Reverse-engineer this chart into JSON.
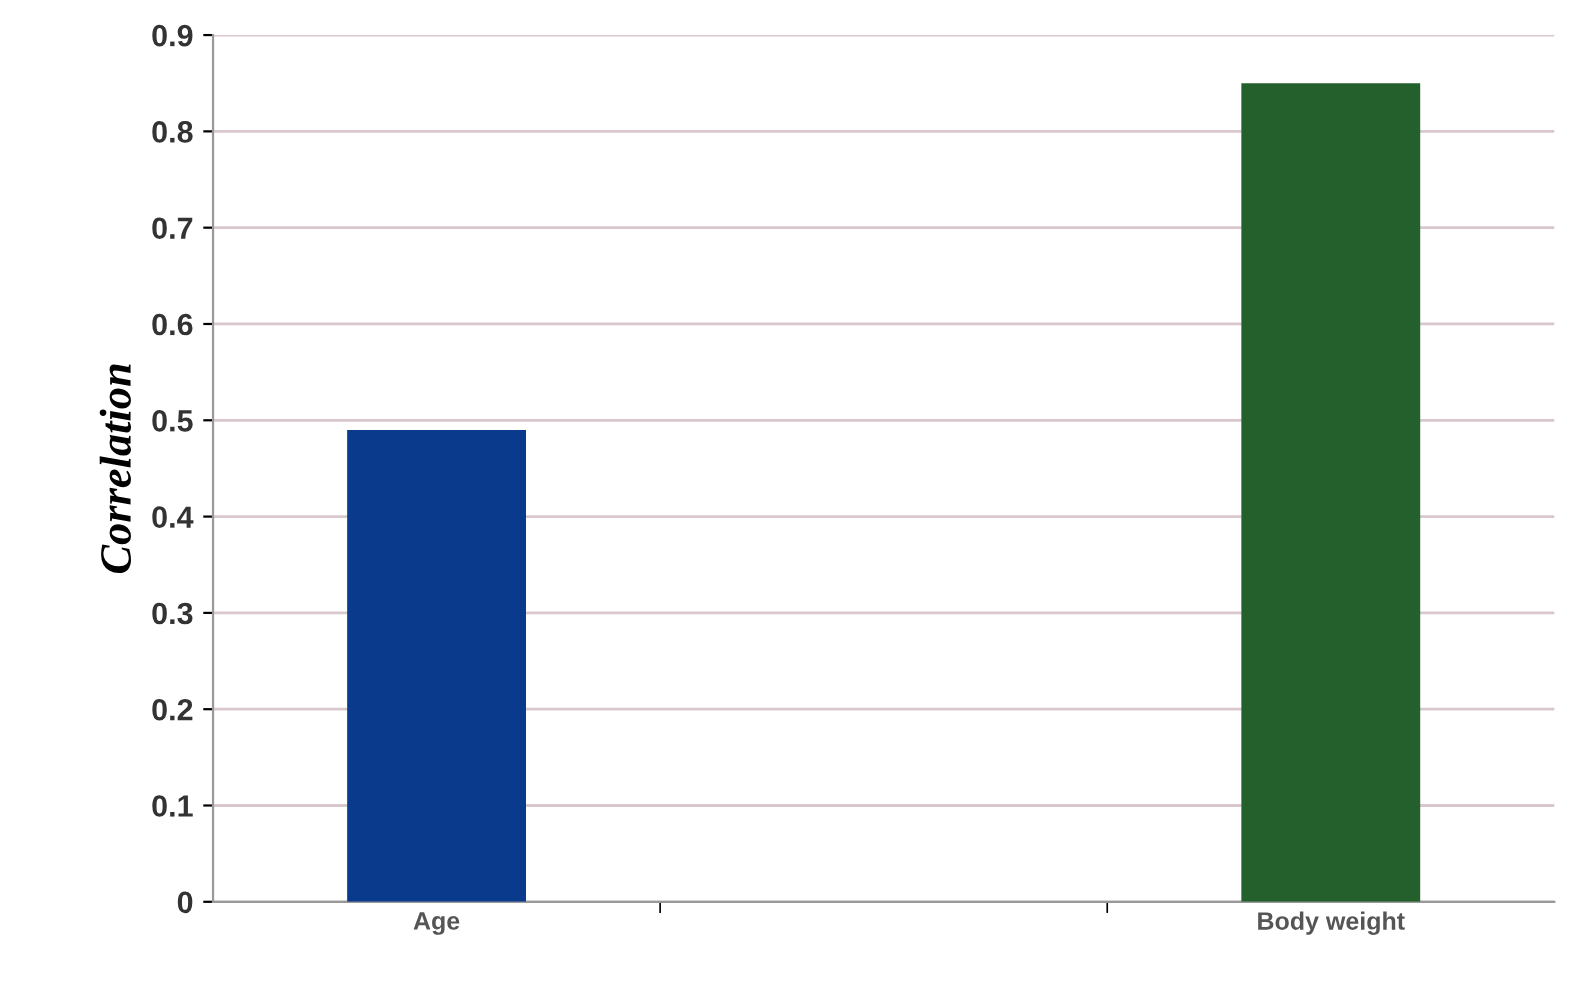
{
  "chart_data": {
    "type": "bar",
    "ylabel": "Correlation",
    "categories": [
      "Age",
      null,
      "Body weight"
    ],
    "values": [
      0.49,
      null,
      0.85
    ],
    "colors": [
      "#0a3a8c",
      "#000000",
      "#24602c"
    ],
    "ylim": [
      0,
      0.9
    ],
    "yticks": [
      0,
      0.1,
      0.2,
      0.3,
      0.4,
      0.5,
      0.6,
      0.7,
      0.8,
      0.9
    ],
    "grid": "y"
  }
}
